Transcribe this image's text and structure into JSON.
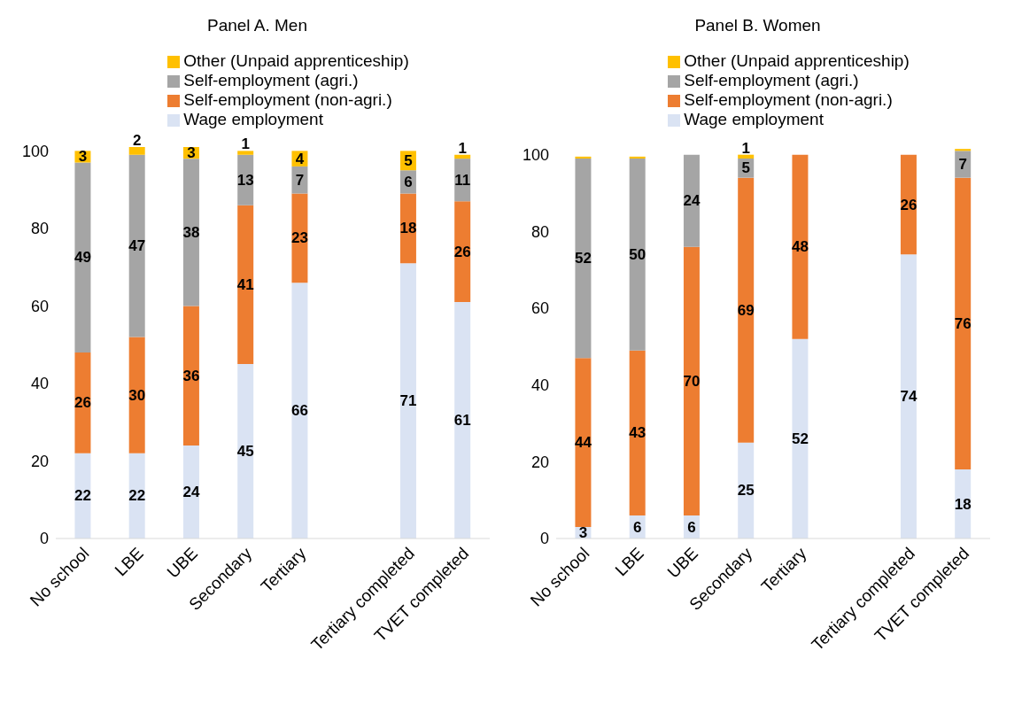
{
  "chart_data": [
    {
      "type": "bar",
      "title": "Panel A. Men",
      "stacked": true,
      "legend": "top",
      "grid": false,
      "data_labels": true,
      "ylim": [
        0,
        101
      ],
      "yticks": [
        0,
        20,
        40,
        60,
        80,
        100
      ],
      "categories": [
        "No school",
        "LBE",
        "UBE",
        "Secondary",
        "Tertiary",
        null,
        "Tertiary completed",
        "TVET completed"
      ],
      "series": [
        {
          "name": "Wage employment",
          "color": "#dae3f3",
          "values": [
            22,
            22,
            24,
            45,
            66,
            null,
            71,
            61
          ]
        },
        {
          "name": "Self-employment (non-agri.)",
          "color": "#ed7d31",
          "values": [
            26,
            30,
            36,
            41,
            23,
            null,
            18,
            26
          ]
        },
        {
          "name": "Self-employment (agri.)",
          "color": "#a5a5a5",
          "values": [
            49,
            47,
            38,
            13,
            7,
            null,
            6,
            11
          ]
        },
        {
          "name": "Other (Unpaid apprenticeship)",
          "color": "#ffc000",
          "values": [
            3,
            2,
            3,
            1,
            4,
            null,
            5,
            1
          ]
        }
      ]
    },
    {
      "type": "bar",
      "title": "Panel B. Women",
      "stacked": true,
      "legend": "top",
      "grid": false,
      "ylim": [
        0,
        102
      ],
      "yticks": [
        0,
        20,
        40,
        60,
        80,
        100
      ],
      "categories": [
        "No school",
        "LBE",
        "UBE",
        "Secondary",
        "Tertiary",
        null,
        "Tertiary completed",
        "TVET completed"
      ],
      "series": [
        {
          "name": "Wage employment",
          "color": "#dae3f3",
          "values": [
            3,
            6,
            6,
            25,
            52,
            null,
            74,
            18
          ],
          "value_labels": [
            "3",
            "6",
            "6",
            "25",
            "52",
            null,
            "74",
            "18"
          ]
        },
        {
          "name": "Self-employment (non-agri.)",
          "color": "#ed7d31",
          "values": [
            44,
            43,
            70,
            69,
            48,
            null,
            26,
            76
          ],
          "value_labels": [
            "44",
            "43",
            "70",
            "69",
            "48",
            null,
            "26",
            "76"
          ]
        },
        {
          "name": "Self-employment (agri.)",
          "color": "#a5a5a5",
          "values": [
            52,
            50,
            24,
            5,
            0,
            null,
            0,
            7
          ],
          "value_labels": [
            "52",
            "50",
            "24",
            "5",
            null,
            null,
            null,
            "7"
          ]
        },
        {
          "name": "Other (Unpaid apprenticeship)",
          "color": "#ffc000",
          "values": [
            0.5,
            0.5,
            0,
            1,
            0,
            null,
            0,
            0.5
          ],
          "value_labels": [
            null,
            null,
            null,
            "1",
            null,
            null,
            null,
            null
          ]
        }
      ]
    }
  ]
}
